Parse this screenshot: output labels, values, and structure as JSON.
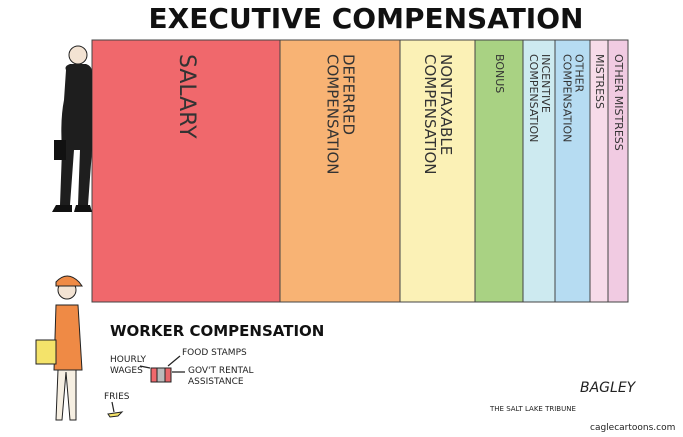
{
  "title": "EXECUTIVE COMPENSATION",
  "executive_columns": [
    {
      "lines": [
        "SALARY"
      ],
      "color": "#f0686c"
    },
    {
      "lines": [
        "DEFERRED",
        "COMPENSATION"
      ],
      "color": "#f8b374"
    },
    {
      "lines": [
        "NONTAXABLE",
        "COMPENSATION"
      ],
      "color": "#fbf1b6"
    },
    {
      "lines": [
        "BONUS"
      ],
      "color": "#a9d283"
    },
    {
      "lines": [
        "INCENTIVE",
        "COMPENSATION"
      ],
      "color": "#cdeaf0"
    },
    {
      "lines": [
        "OTHER",
        "COMPENSATION"
      ],
      "color": "#b6dcf2"
    },
    {
      "lines": [
        "MISTRESS"
      ],
      "color": "#f7dbe9"
    },
    {
      "lines": [
        "OTHER MISTRESS"
      ],
      "color": "#f1cbe2"
    }
  ],
  "worker": {
    "title": "WORKER COMPENSATION",
    "labels": {
      "hourly_wages": [
        "HOURLY",
        "WAGES"
      ],
      "food_stamps": "FOOD STAMPS",
      "rental": [
        "GOV'T RENTAL",
        "ASSISTANCE"
      ],
      "fries": "FRIES"
    }
  },
  "credits": {
    "paper": "THE SALT LAKE TRIBUNE",
    "signature": "BAGLEY",
    "site": "caglecartoons.com"
  }
}
